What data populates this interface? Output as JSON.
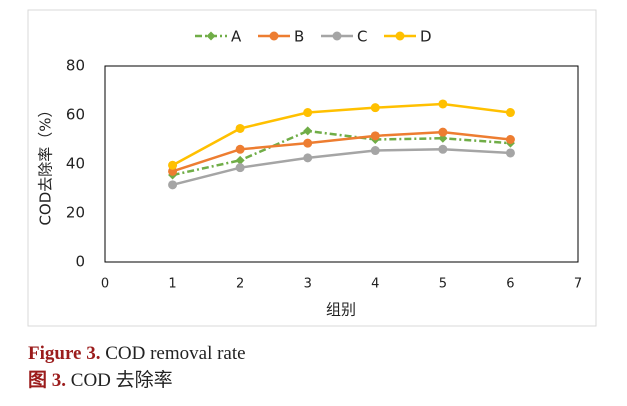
{
  "chart_data": {
    "type": "line",
    "x": [
      1,
      2,
      3,
      4,
      5,
      6
    ],
    "series": [
      {
        "name": "A",
        "color": "#70ad47",
        "marker": "diamond",
        "dash": "dashdot",
        "values": [
          35.5,
          41.5,
          53.5,
          50,
          50.5,
          48.5
        ]
      },
      {
        "name": "B",
        "color": "#ed7d31",
        "marker": "circle",
        "dash": "solid",
        "values": [
          37,
          46,
          48.5,
          51.5,
          53,
          50
        ]
      },
      {
        "name": "C",
        "color": "#a5a5a5",
        "marker": "circle",
        "dash": "solid",
        "values": [
          31.5,
          38.5,
          42.5,
          45.5,
          46,
          44.5
        ]
      },
      {
        "name": "D",
        "color": "#ffc000",
        "marker": "circle",
        "dash": "solid",
        "values": [
          39.5,
          54.5,
          61,
          63,
          64.5,
          61
        ]
      }
    ],
    "xlim": [
      0,
      7
    ],
    "xticks": [
      0,
      1,
      2,
      3,
      4,
      5,
      6,
      7
    ],
    "ylim": [
      0,
      80
    ],
    "yticks": [
      0,
      20,
      40,
      60,
      80
    ],
    "xlabel": "组别",
    "ylabel": "COD去除率（%）",
    "legend": "top",
    "grid": false
  },
  "caption": {
    "label": "Figure 3.",
    "text": "COD removal rate",
    "label_cn": "图 3.",
    "text_cn": "COD 去除率"
  }
}
